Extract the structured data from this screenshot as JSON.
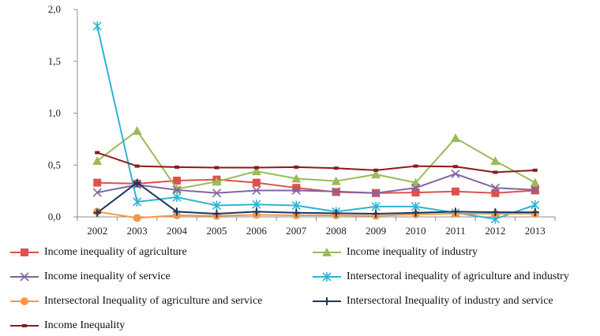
{
  "chart_data": {
    "type": "line",
    "title": "",
    "xlabel": "",
    "ylabel": "",
    "x": [
      "2002",
      "2003",
      "2004",
      "2005",
      "2006",
      "2007",
      "2008",
      "2009",
      "2010",
      "2011",
      "2012",
      "2013"
    ],
    "y_ticks": [
      "0,0",
      "0,5",
      "1,0",
      "1,5",
      "2,0"
    ],
    "ylim": [
      0,
      2.0
    ],
    "grid": false,
    "legend_position": "bottom",
    "series": [
      {
        "name": "Income inequality of agriculture",
        "color": "#e0504b",
        "marker": "square",
        "values": [
          0.33,
          0.32,
          0.35,
          0.36,
          0.33,
          0.28,
          0.24,
          0.23,
          0.235,
          0.245,
          0.23,
          0.255
        ]
      },
      {
        "name": "Income inequality of industry",
        "color": "#9bbb59",
        "marker": "triangle",
        "values": [
          0.54,
          0.83,
          0.27,
          0.34,
          0.44,
          0.37,
          0.345,
          0.41,
          0.33,
          0.76,
          0.54,
          0.33
        ]
      },
      {
        "name": "Income inequality of service",
        "color": "#8064a2",
        "marker": "x",
        "values": [
          0.235,
          0.31,
          0.26,
          0.23,
          0.255,
          0.255,
          0.245,
          0.23,
          0.28,
          0.415,
          0.28,
          0.26
        ]
      },
      {
        "name": "Intersectoral inequality  of agriculture and industry",
        "color": "#2eb3d6",
        "marker": "star",
        "values": [
          1.84,
          0.145,
          0.19,
          0.11,
          0.12,
          0.11,
          0.05,
          0.1,
          0.1,
          0.04,
          -0.02,
          0.115
        ]
      },
      {
        "name": "Intersectoral Inequality of agriculture and service",
        "color": "#f79646",
        "marker": "circle",
        "values": [
          0.05,
          -0.01,
          0.015,
          0.01,
          0.02,
          0.015,
          0.015,
          0.01,
          0.025,
          0.03,
          0.03,
          0.03
        ]
      },
      {
        "name": "Intersectoral Inequality of industry and service",
        "color": "#17375e",
        "marker": "plus",
        "values": [
          0.04,
          0.33,
          0.05,
          0.03,
          0.05,
          0.04,
          0.035,
          0.03,
          0.04,
          0.05,
          0.045,
          0.045
        ]
      },
      {
        "name": "Income Inequality",
        "color": "#8b1a1a",
        "marker": "dash",
        "values": [
          0.62,
          0.49,
          0.48,
          0.475,
          0.475,
          0.48,
          0.47,
          0.45,
          0.49,
          0.485,
          0.43,
          0.45
        ]
      }
    ]
  }
}
